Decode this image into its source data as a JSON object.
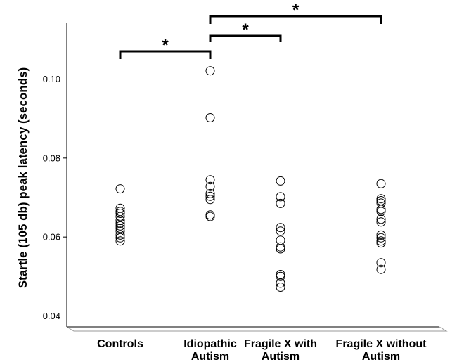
{
  "chart_data": {
    "type": "scatter",
    "title": "",
    "ylabel": "Startle (105 db) peak latency (seconds)",
    "xlabel": "",
    "ylim": [
      0.037,
      0.115
    ],
    "yticks": [
      "0.04",
      "0.06",
      "0.08",
      "0.10"
    ],
    "grid": false,
    "categories": [
      [
        "Controls"
      ],
      [
        "Idiopathic",
        "Autism"
      ],
      [
        "Fragile X with",
        "Autism"
      ],
      [
        "Fragile X without",
        "Autism"
      ]
    ],
    "groups": [
      {
        "values": [
          0.0722,
          0.0673,
          0.0665,
          0.066,
          0.0652,
          0.0642,
          0.0635,
          0.0628,
          0.0622,
          0.0615,
          0.0605,
          0.0598,
          0.059
        ]
      },
      {
        "values": [
          0.1021,
          0.0902,
          0.0745,
          0.0728,
          0.071,
          0.0703,
          0.0695,
          0.0656,
          0.0652
        ]
      },
      {
        "values": [
          0.0742,
          0.0702,
          0.0685,
          0.0624,
          0.0615,
          0.0592,
          0.0575,
          0.057,
          0.0505,
          0.05,
          0.0483,
          0.0473
        ]
      },
      {
        "values": [
          0.0735,
          0.0697,
          0.0692,
          0.0686,
          0.067,
          0.0665,
          0.0645,
          0.0638,
          0.0605,
          0.0598,
          0.059,
          0.0585,
          0.0535,
          0.0518
        ]
      }
    ],
    "significance": [
      {
        "from": 0,
        "to": 1,
        "label": "*"
      },
      {
        "from": 1,
        "to": 2,
        "label": "*"
      },
      {
        "from": 1,
        "to": 3,
        "label": "*"
      }
    ]
  }
}
